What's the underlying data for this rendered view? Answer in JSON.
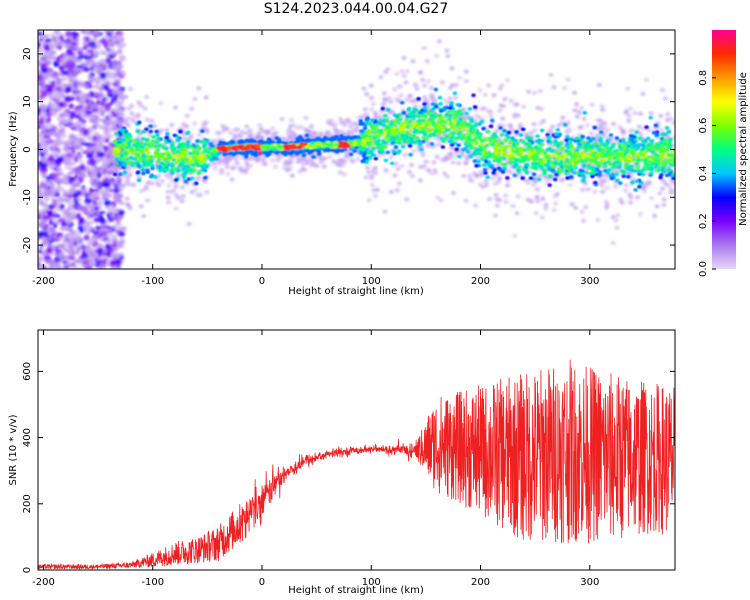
{
  "figure": {
    "title": "S124.2023.044.00.04.G27"
  },
  "chart_data": [
    {
      "type": "heatmap",
      "xlabel": "Height of straight line (km)",
      "ylabel": "Frequency (Hz)",
      "xlim": [
        -205,
        378
      ],
      "ylim": [
        -25,
        25
      ],
      "xticks": [
        -200,
        -100,
        0,
        100,
        200,
        300
      ],
      "yticks": [
        -20,
        -10,
        0,
        10,
        20
      ],
      "grid": false,
      "colorbar": {
        "label": "Normalized spectral amplitude",
        "range": [
          0,
          1
        ],
        "ticks": [
          0.0,
          0.2,
          0.4,
          0.6,
          0.8
        ],
        "colormap": [
          "#e7d8f5",
          "#a879f0",
          "#7a00ff",
          "#0000ff",
          "#00c8ff",
          "#00ff80",
          "#80ff00",
          "#ffff00",
          "#ff9900",
          "#ff2a00",
          "#ff0090"
        ]
      },
      "ridge": {
        "description_points_x": [
          -130,
          -60,
          -40,
          -20,
          0,
          20,
          40,
          60,
          80,
          100,
          120,
          150,
          180,
          200,
          230,
          260,
          300,
          340,
          375
        ],
        "description_points_y": [
          0,
          -2,
          0,
          0.5,
          0.5,
          0.5,
          0.7,
          1,
          1,
          2,
          4,
          5,
          5,
          1,
          -1,
          -1.5,
          -1.5,
          -1.5,
          -1
        ],
        "high_amplitude_x_ranges": [
          [
            -40,
            0
          ],
          [
            20,
            40
          ],
          [
            70,
            80
          ]
        ]
      }
    },
    {
      "type": "line",
      "xlabel": "Height of straight line (km)",
      "ylabel": "SNR (10 * v/v)",
      "xlim": [
        -205,
        378
      ],
      "ylim": [
        0,
        725
      ],
      "xticks": [
        -200,
        -100,
        0,
        100,
        200,
        300
      ],
      "yticks": [
        0,
        200,
        400,
        600
      ],
      "grid": false,
      "series": [
        {
          "color": "#ee2020",
          "envelope_x": [
            -205,
            -150,
            -120,
            -100,
            -80,
            -60,
            -40,
            -20,
            0,
            20,
            40,
            60,
            80,
            100,
            120,
            140,
            160,
            180,
            200,
            220,
            240,
            260,
            280,
            300,
            320,
            340,
            360,
            378
          ],
          "envelope_mean": [
            10,
            10,
            15,
            30,
            50,
            60,
            80,
            140,
            220,
            290,
            330,
            350,
            360,
            365,
            362,
            360,
            380,
            370,
            360,
            350,
            340,
            350,
            360,
            350,
            340,
            340,
            340,
            330
          ],
          "envelope_noise": [
            8,
            8,
            10,
            25,
            40,
            45,
            60,
            70,
            60,
            30,
            20,
            15,
            12,
            12,
            15,
            30,
            150,
            170,
            200,
            230,
            260,
            270,
            280,
            270,
            260,
            240,
            230,
            230
          ]
        }
      ]
    }
  ]
}
